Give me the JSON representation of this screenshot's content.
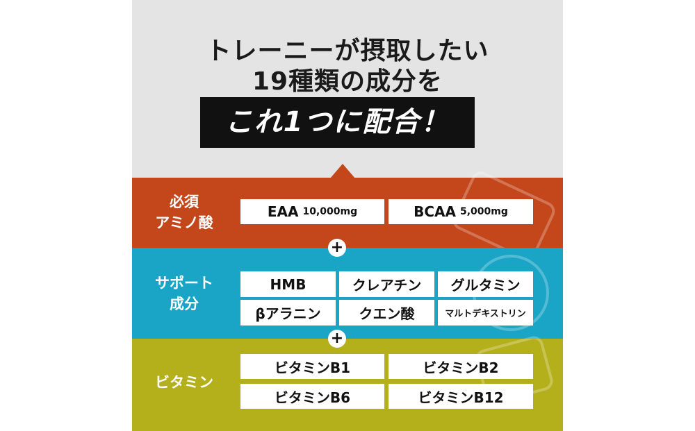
{
  "headline": {
    "line1": "トレーニーが摂取したい",
    "line2": "19種類の成分を",
    "highlight": "これ1つに配合！"
  },
  "colors": {
    "amino": "#c4461b",
    "support": "#1aa5c6",
    "vitamin": "#b4b01c",
    "background": "#e4e4e4"
  },
  "sections": [
    {
      "label_l1": "必須",
      "label_l2": "アミノ酸",
      "items": [
        {
          "name": "EAA",
          "amount": "10,000mg"
        },
        {
          "name": "BCAA",
          "amount": "5,000mg"
        }
      ]
    },
    {
      "label_l1": "サポート",
      "label_l2": "成分",
      "items": [
        {
          "name": "HMB"
        },
        {
          "name": "クレアチン"
        },
        {
          "name": "グルタミン"
        },
        {
          "name": "βアラニン"
        },
        {
          "name": "クエン酸"
        },
        {
          "name": "マルトデキストリン"
        }
      ]
    },
    {
      "label_l1": "ビタミン",
      "items": [
        {
          "name": "ビタミンB1"
        },
        {
          "name": "ビタミンB2"
        },
        {
          "name": "ビタミンB6"
        },
        {
          "name": "ビタミンB12"
        }
      ]
    }
  ],
  "plus": "+"
}
